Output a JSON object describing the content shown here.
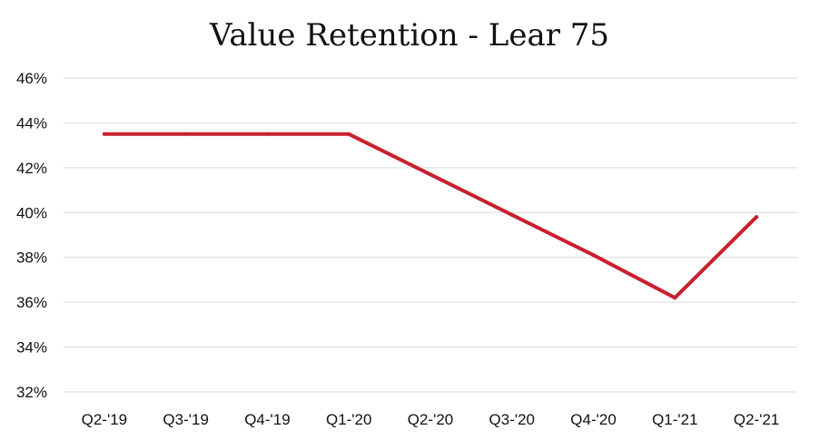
{
  "chart_data": {
    "type": "line",
    "title": "Value Retention - Lear 75",
    "xlabel": "",
    "ylabel": "",
    "categories": [
      "Q2-'19",
      "Q3-'19",
      "Q4-'19",
      "Q1-'20",
      "Q2-'20",
      "Q3-'20",
      "Q4-'20",
      "Q1-'21",
      "Q2-'21"
    ],
    "y_ticks": [
      "32%",
      "34%",
      "36%",
      "38%",
      "40%",
      "42%",
      "44%",
      "46%"
    ],
    "y_tick_values": [
      32,
      34,
      36,
      38,
      40,
      42,
      44,
      46
    ],
    "ylim": [
      32,
      46
    ],
    "series": [
      {
        "values": [
          43.5,
          43.5,
          43.5,
          43.5,
          41.7,
          39.9,
          38.1,
          36.2,
          39.8
        ],
        "color": "#c8202e"
      }
    ],
    "grid": true,
    "legend": "none"
  }
}
